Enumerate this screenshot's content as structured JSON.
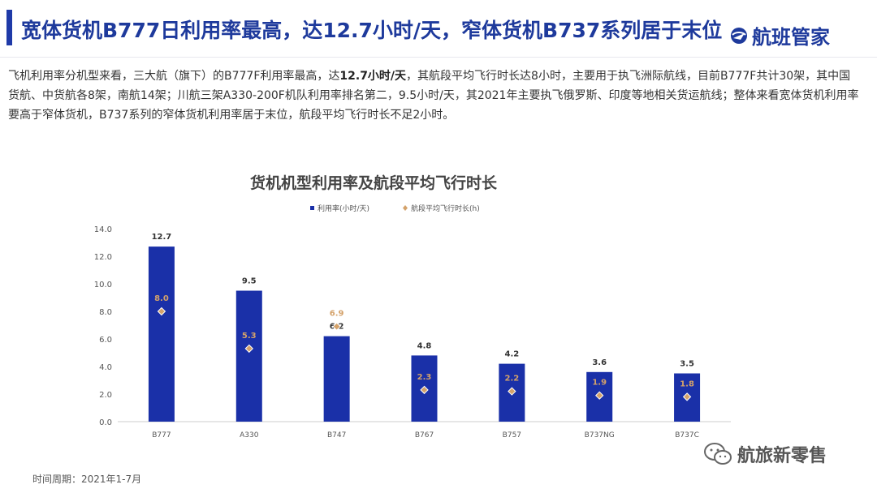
{
  "header": {
    "title": "宽体货机B777日利用率最高，达12.7小时/天，窄体货机B737系列居于末位",
    "logo_text": "航班管家",
    "logo_icon": "globe-plane-icon"
  },
  "description": {
    "part1": "飞机利用率分机型来看，三大航（旗下）的B777F利用率最高，达",
    "highlight": "12.7小时/天",
    "part2": "，其航段平均飞行时长达8小时，主要用于执飞洲际航线，目前B777F共计30架，其中国货航、中货航各8架，南航14架；川航三架A330-200F机队利用率排名第二，9.5小时/天，其2021年主要执飞俄罗斯、印度等地相关货运航线；整体来看宽体货机利用率要高于窄体货机，B737系列的窄体货机利用率居于末位，航段平均飞行时长不足2小时。"
  },
  "chart_data": {
    "type": "bar",
    "title": "货机机型利用率及航段平均飞行时长",
    "categories": [
      "B777",
      "A330",
      "B747",
      "B767",
      "B757",
      "B737NG",
      "B737C"
    ],
    "series": [
      {
        "name": "利用率(小时/天)",
        "type": "bar",
        "color": "#1a30a8",
        "values": [
          12.7,
          9.5,
          6.2,
          4.8,
          4.2,
          3.6,
          3.5
        ]
      },
      {
        "name": "航段平均飞行时长(h)",
        "type": "scatter",
        "color": "#d4a26a",
        "values": [
          8.0,
          5.3,
          6.9,
          2.3,
          2.2,
          1.9,
          1.8
        ]
      }
    ],
    "y_ticks": [
      "0.0",
      "2.0",
      "4.0",
      "6.0",
      "8.0",
      "10.0",
      "12.0",
      "14.0"
    ],
    "ylim": [
      0,
      14
    ],
    "legend_position": "top-center",
    "grid": false
  },
  "footnote": "时间周期：2021年1-7月",
  "watermark": {
    "text": "航旅新零售",
    "icon": "wechat-icon"
  }
}
